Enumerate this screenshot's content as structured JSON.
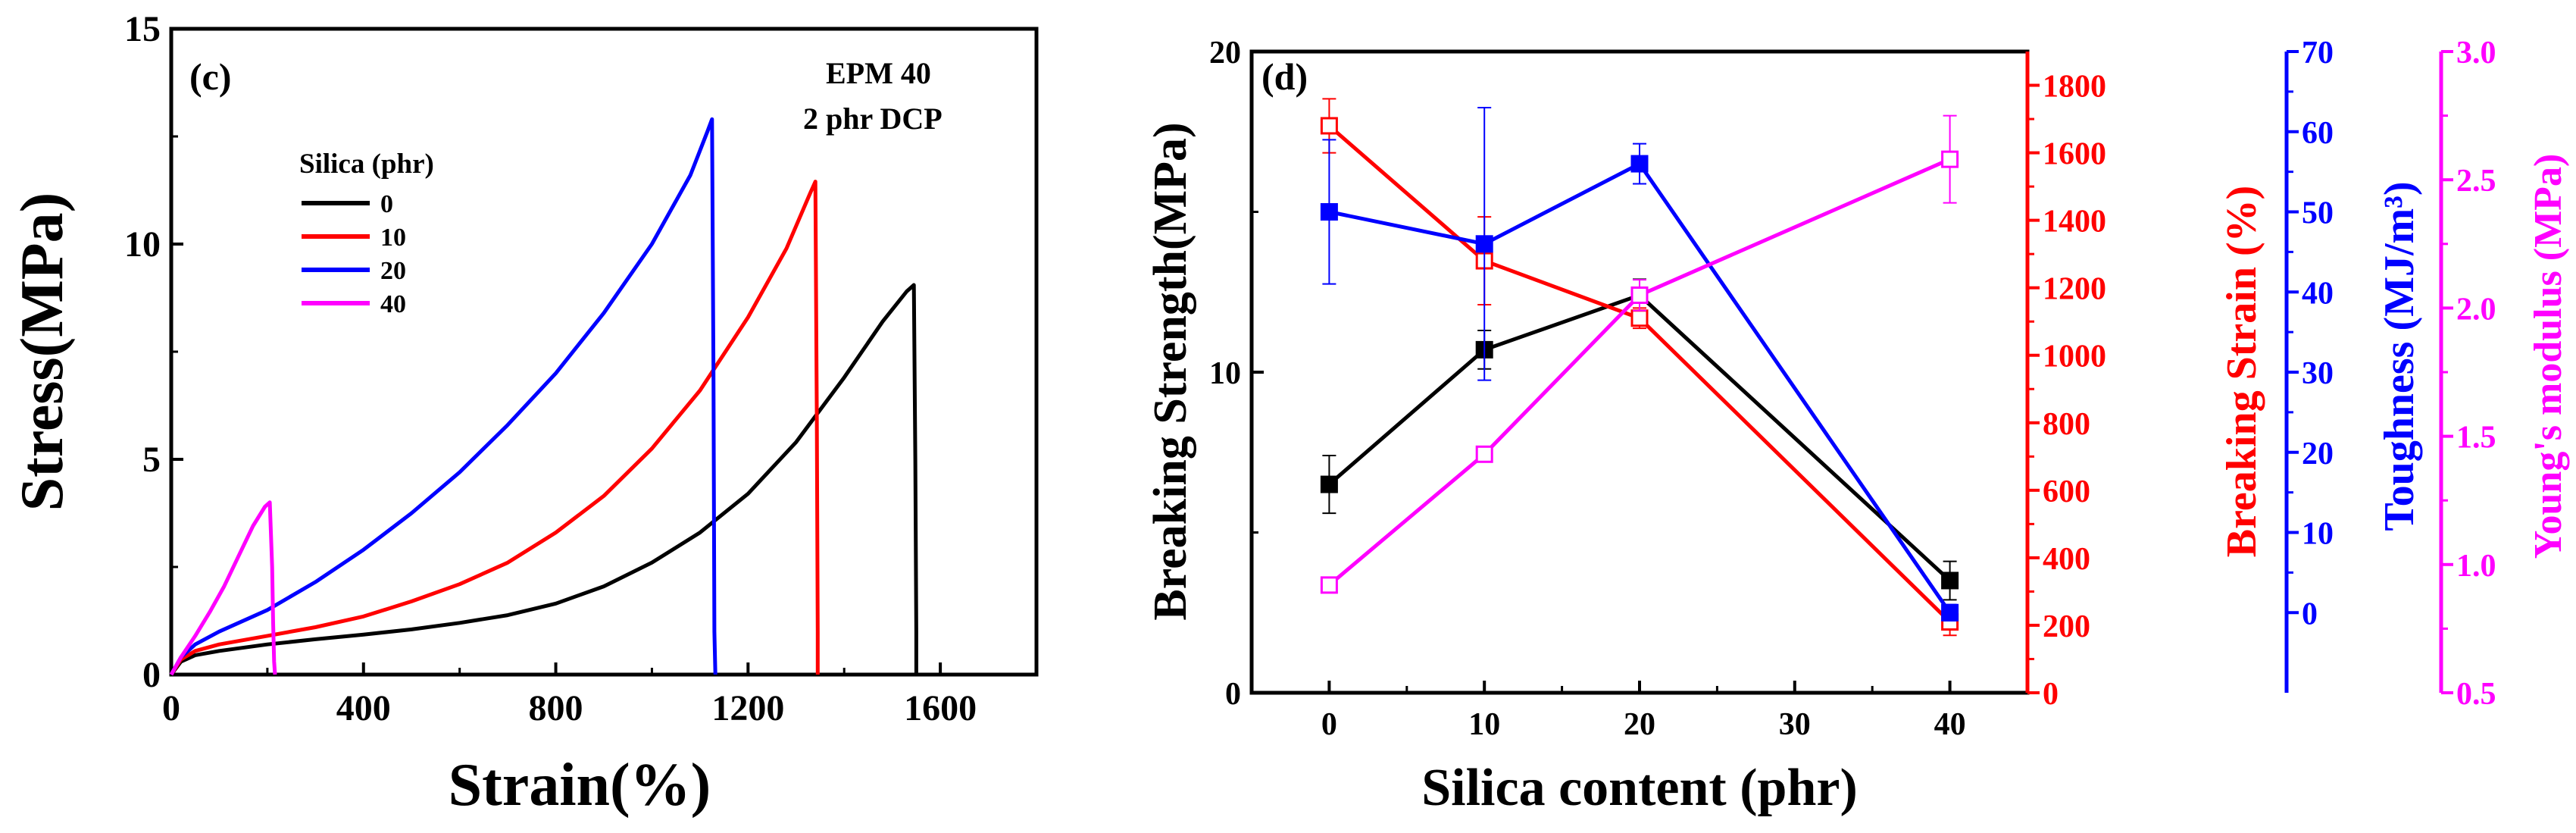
{
  "chart_data": [
    {
      "panel_label": "(c)",
      "type": "line",
      "xlabel": "Strain(%)",
      "ylabel": "Stress(MPa)",
      "xlim": [
        0,
        1800
      ],
      "ylim": [
        0,
        15
      ],
      "xticks": [
        0,
        400,
        800,
        1200,
        1600
      ],
      "yticks": [
        0,
        5,
        10,
        15
      ],
      "annotation": [
        "EPM 40",
        "2 phr DCP"
      ],
      "legend_title": "Silica (phr)",
      "series": [
        {
          "name": "0",
          "color": "#000000",
          "x": [
            0,
            20,
            50,
            100,
            200,
            300,
            400,
            500,
            600,
            700,
            800,
            900,
            1000,
            1100,
            1200,
            1300,
            1400,
            1480,
            1530,
            1545,
            1548,
            1550,
            1550
          ],
          "y": [
            0,
            0.3,
            0.45,
            0.55,
            0.7,
            0.82,
            0.93,
            1.05,
            1.2,
            1.38,
            1.65,
            2.05,
            2.6,
            3.3,
            4.2,
            5.4,
            6.9,
            8.2,
            8.9,
            9.05,
            5.0,
            1.0,
            0
          ]
        },
        {
          "name": "10",
          "color": "#ff0000",
          "x": [
            0,
            20,
            50,
            100,
            200,
            300,
            400,
            500,
            600,
            700,
            800,
            900,
            1000,
            1100,
            1200,
            1280,
            1330,
            1340,
            1343,
            1345,
            1345
          ],
          "y": [
            0,
            0.35,
            0.55,
            0.7,
            0.9,
            1.1,
            1.35,
            1.7,
            2.1,
            2.6,
            3.3,
            4.15,
            5.25,
            6.6,
            8.3,
            9.9,
            11.2,
            11.45,
            6.0,
            1.0,
            0
          ]
        },
        {
          "name": "20",
          "color": "#0000ff",
          "x": [
            0,
            20,
            50,
            100,
            200,
            300,
            400,
            500,
            600,
            700,
            800,
            900,
            1000,
            1080,
            1115,
            1125,
            1128,
            1130,
            1132
          ],
          "y": [
            0,
            0.4,
            0.7,
            1.0,
            1.5,
            2.15,
            2.9,
            3.75,
            4.7,
            5.8,
            7.0,
            8.4,
            10.0,
            11.6,
            12.6,
            12.9,
            7.0,
            1.0,
            0
          ]
        },
        {
          "name": "40",
          "color": "#ff00ff",
          "x": [
            0,
            20,
            50,
            80,
            110,
            140,
            170,
            195,
            205,
            210,
            212,
            214,
            216
          ],
          "y": [
            0,
            0.4,
            0.9,
            1.45,
            2.05,
            2.75,
            3.45,
            3.9,
            4.0,
            2.5,
            1.2,
            0.3,
            0
          ]
        }
      ]
    },
    {
      "panel_label": "(d)",
      "type": "line",
      "xlabel": "Silica content (phr)",
      "xlim": [
        -5,
        45
      ],
      "xticks": [
        0,
        10,
        20,
        30,
        40
      ],
      "x": [
        0,
        10,
        20,
        40
      ],
      "axes": [
        {
          "id": "strength",
          "label": "Breaking Strength(MPa)",
          "color": "#000000",
          "ylim": [
            0,
            20
          ],
          "ticks": [
            0,
            10,
            20
          ]
        },
        {
          "id": "strain",
          "label": "Breaking Strain (%)",
          "color": "#ff0000",
          "ylim": [
            0,
            1900
          ],
          "ticks": [
            0,
            200,
            400,
            600,
            800,
            1000,
            1200,
            1400,
            1600,
            1800
          ]
        },
        {
          "id": "toughness",
          "label": "Toughness (MJ/m³)",
          "color": "#0000ff",
          "ylim": [
            -10,
            70
          ],
          "ticks": [
            0,
            10,
            20,
            30,
            40,
            50,
            60,
            70
          ]
        },
        {
          "id": "modulus",
          "label": "Young's modulus (MPa)",
          "color": "#ff00ff",
          "ylim": [
            0.5,
            3.0
          ],
          "ticks": [
            "0.5",
            "1.0",
            "1.5",
            "2.0",
            "2.5",
            "3.0"
          ]
        }
      ],
      "series": [
        {
          "name": "Breaking Strength",
          "axis": "strength",
          "color": "#000000",
          "marker": "filled-square",
          "y": [
            6.5,
            10.7,
            12.4,
            3.5
          ],
          "err": [
            0.9,
            0.6,
            0.5,
            0.6
          ]
        },
        {
          "name": "Breaking Strain",
          "axis": "strain",
          "color": "#ff0000",
          "marker": "open-square",
          "y": [
            1680,
            1280,
            1110,
            210
          ],
          "err": [
            80,
            130,
            30,
            40
          ]
        },
        {
          "name": "Toughness",
          "axis": "toughness",
          "color": "#0000ff",
          "marker": "filled-square",
          "y": [
            50,
            46,
            56,
            0
          ],
          "err": [
            9,
            17,
            2.5,
            1
          ]
        },
        {
          "name": "Young's modulus",
          "axis": "modulus",
          "color": "#ff00ff",
          "marker": "open-square",
          "y": [
            0.92,
            1.43,
            2.05,
            2.58
          ],
          "err": [
            0.02,
            0.02,
            0.06,
            0.17
          ]
        }
      ]
    }
  ]
}
